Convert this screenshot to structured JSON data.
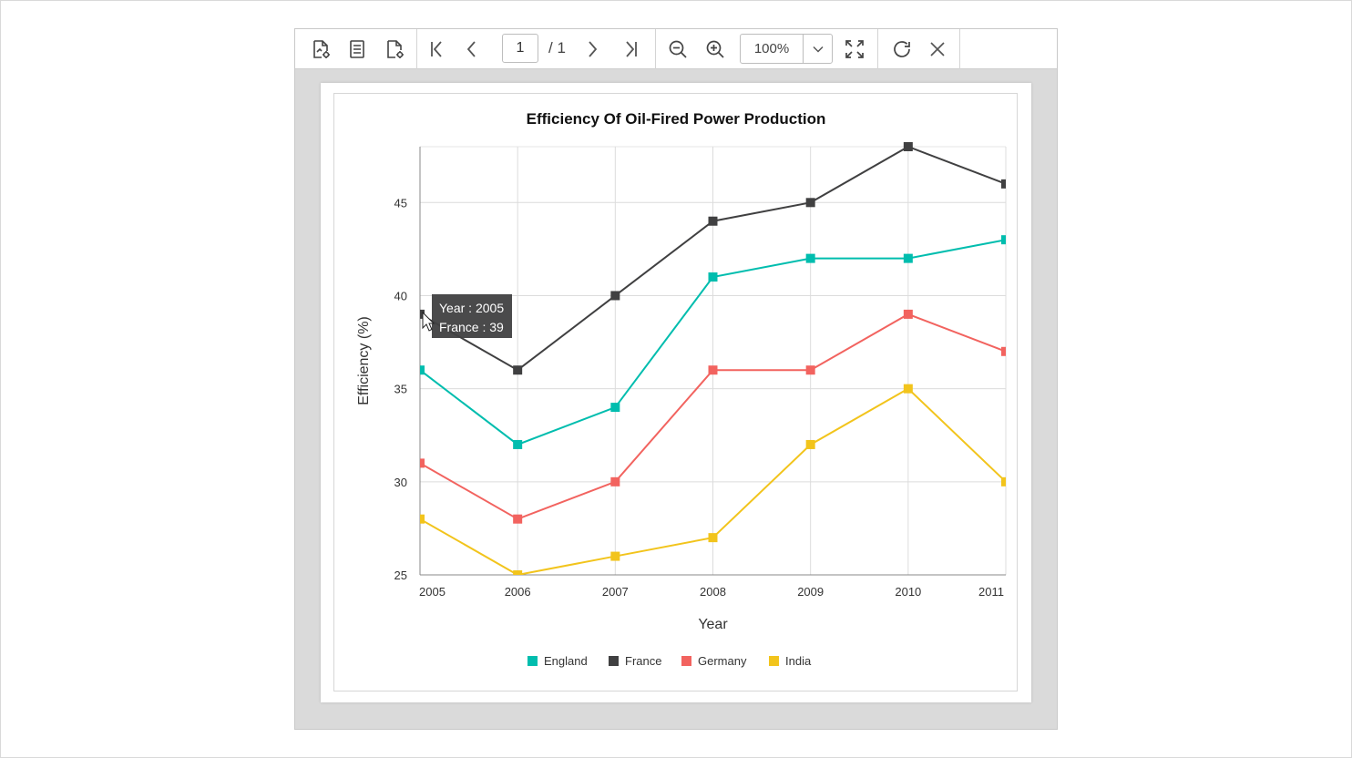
{
  "toolbar": {
    "page_current": "1",
    "page_total": "/ 1",
    "zoom": "100%",
    "icons": [
      "export-icon",
      "document-map-icon",
      "page-setup-icon",
      "first-page-icon",
      "previous-page-icon",
      "next-page-icon",
      "last-page-icon",
      "zoom-out-icon",
      "zoom-in-icon",
      "zoom-dropdown-icon",
      "fit-page-icon",
      "refresh-icon",
      "close-icon"
    ]
  },
  "tooltip": {
    "line1": "Year : 2005",
    "line2": "France : 39"
  },
  "chart_data": {
    "type": "line",
    "title": "Efficiency Of Oil-Fired Power Production",
    "xlabel": "Year",
    "ylabel": "Efficiency (%)",
    "categories": [
      "2005",
      "2006",
      "2007",
      "2008",
      "2009",
      "2010",
      "2011"
    ],
    "y_ticks": [
      "25",
      "30",
      "35",
      "40",
      "45"
    ],
    "ylim": [
      25,
      48
    ],
    "grid": true,
    "legend_position": "bottom",
    "series": [
      {
        "name": "England",
        "color": "#00bdae",
        "values": [
          36,
          32,
          34,
          41,
          42,
          42,
          43
        ]
      },
      {
        "name": "France",
        "color": "#404041",
        "values": [
          39,
          36,
          40,
          44,
          45,
          48,
          46
        ]
      },
      {
        "name": "Germany",
        "color": "#f2635f",
        "values": [
          31,
          28,
          30,
          36,
          36,
          39,
          37
        ]
      },
      {
        "name": "India",
        "color": "#f2c41c",
        "values": [
          28,
          25,
          26,
          27,
          32,
          35,
          30
        ]
      }
    ]
  }
}
